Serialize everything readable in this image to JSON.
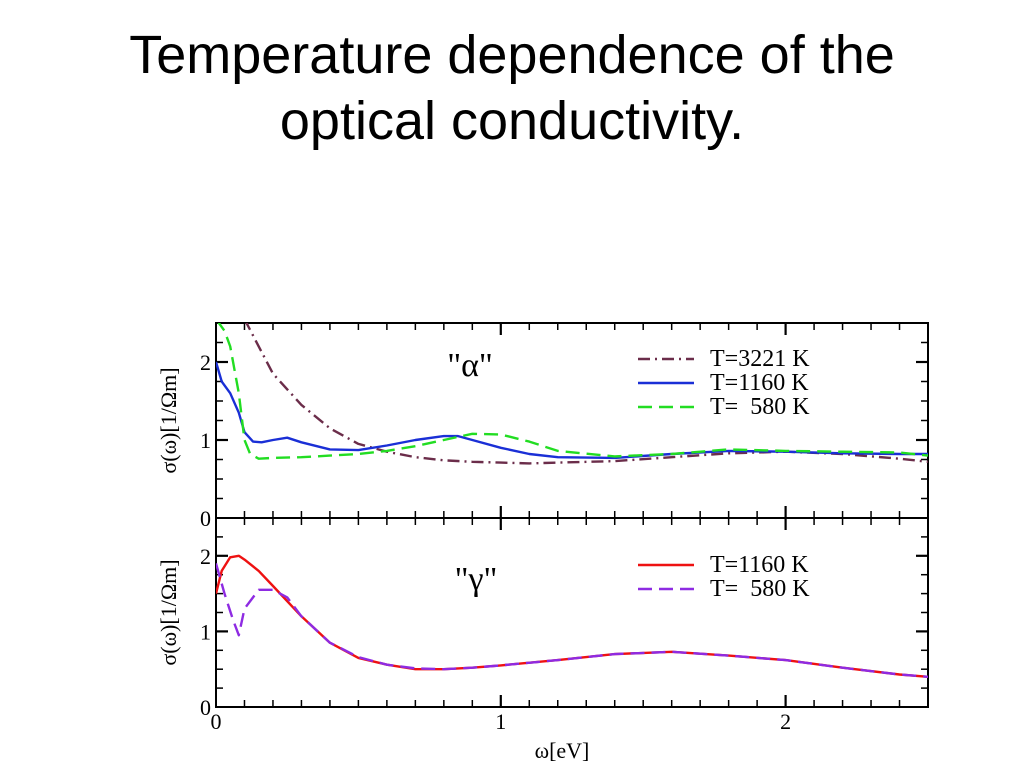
{
  "title": {
    "line1": "Temperature dependence of the",
    "line2": "optical conductivity."
  },
  "chart_data": [
    {
      "type": "line",
      "panel_label": "\"α\"",
      "ylabel": "σ(ω)[1/Ωm]",
      "xlim": [
        0,
        2.5
      ],
      "ylim": [
        0,
        2.5
      ],
      "y_ticks": [
        0,
        1,
        2
      ],
      "legend_position": "top-right",
      "series": [
        {
          "name": "T=3221 K",
          "color": "#6b2d4a",
          "dash": "dash-dot",
          "x": [
            0.1,
            0.15,
            0.2,
            0.3,
            0.4,
            0.5,
            0.6,
            0.7,
            0.8,
            0.9,
            1.0,
            1.1,
            1.2,
            1.4,
            1.6,
            1.8,
            2.0,
            2.2,
            2.4,
            2.5
          ],
          "y": [
            2.55,
            2.2,
            1.85,
            1.45,
            1.15,
            0.95,
            0.85,
            0.78,
            0.74,
            0.72,
            0.71,
            0.7,
            0.71,
            0.73,
            0.78,
            0.83,
            0.85,
            0.82,
            0.76,
            0.72
          ]
        },
        {
          "name": "T=1160 K",
          "color": "#1a2fd6",
          "dash": "solid",
          "x": [
            0.0,
            0.02,
            0.05,
            0.08,
            0.1,
            0.13,
            0.16,
            0.2,
            0.25,
            0.3,
            0.4,
            0.5,
            0.6,
            0.7,
            0.8,
            0.85,
            0.9,
            1.0,
            1.1,
            1.2,
            1.4,
            1.6,
            1.8,
            2.0,
            2.2,
            2.4,
            2.5
          ],
          "y": [
            2.0,
            1.75,
            1.6,
            1.35,
            1.1,
            0.98,
            0.97,
            1.0,
            1.03,
            0.97,
            0.88,
            0.87,
            0.93,
            1.0,
            1.05,
            1.05,
            1.0,
            0.9,
            0.82,
            0.78,
            0.77,
            0.82,
            0.86,
            0.85,
            0.83,
            0.82,
            0.82
          ]
        },
        {
          "name": "T=  580 K",
          "color": "#22dd22",
          "dash": "dashed",
          "x": [
            0.0,
            0.03,
            0.05,
            0.08,
            0.1,
            0.12,
            0.15,
            0.2,
            0.3,
            0.4,
            0.5,
            0.6,
            0.7,
            0.8,
            0.9,
            1.0,
            1.1,
            1.2,
            1.4,
            1.6,
            1.8,
            2.0,
            2.2,
            2.4,
            2.5
          ],
          "y": [
            2.55,
            2.4,
            2.2,
            1.6,
            1.0,
            0.82,
            0.76,
            0.77,
            0.78,
            0.8,
            0.82,
            0.86,
            0.92,
            1.0,
            1.08,
            1.07,
            0.98,
            0.86,
            0.79,
            0.82,
            0.88,
            0.86,
            0.85,
            0.84,
            0.8
          ]
        }
      ]
    },
    {
      "type": "line",
      "panel_label": "\"γ\"",
      "ylabel": "σ(ω)[1/Ωm]",
      "xlabel": "ω[eV]",
      "xlim": [
        0,
        2.5
      ],
      "ylim": [
        0,
        2.5
      ],
      "x_ticks": [
        0,
        1,
        2
      ],
      "y_ticks": [
        0,
        1,
        2
      ],
      "legend_position": "top-right",
      "series": [
        {
          "name": "T=1160 K",
          "color": "#ee1111",
          "dash": "solid",
          "x": [
            0.0,
            0.02,
            0.05,
            0.08,
            0.1,
            0.15,
            0.2,
            0.3,
            0.4,
            0.5,
            0.6,
            0.7,
            0.8,
            0.9,
            1.0,
            1.2,
            1.4,
            1.6,
            1.8,
            2.0,
            2.2,
            2.4,
            2.5
          ],
          "y": [
            1.5,
            1.8,
            1.98,
            2.0,
            1.95,
            1.8,
            1.6,
            1.2,
            0.85,
            0.65,
            0.56,
            0.5,
            0.5,
            0.52,
            0.55,
            0.62,
            0.7,
            0.73,
            0.68,
            0.62,
            0.52,
            0.43,
            0.4
          ]
        },
        {
          "name": "T=  580 K",
          "color": "#8e2be2",
          "dash": "dashed",
          "x": [
            0.0,
            0.03,
            0.06,
            0.08,
            0.1,
            0.15,
            0.2,
            0.25,
            0.3,
            0.4,
            0.5,
            0.6,
            0.7,
            0.8,
            0.9,
            1.0,
            1.2,
            1.4,
            1.6,
            1.8,
            2.0,
            2.2,
            2.4,
            2.5
          ],
          "y": [
            1.9,
            1.5,
            1.15,
            0.95,
            1.3,
            1.55,
            1.55,
            1.45,
            1.2,
            0.85,
            0.66,
            0.56,
            0.51,
            0.5,
            0.52,
            0.55,
            0.62,
            0.7,
            0.73,
            0.68,
            0.62,
            0.52,
            0.43,
            0.4
          ]
        }
      ]
    }
  ]
}
